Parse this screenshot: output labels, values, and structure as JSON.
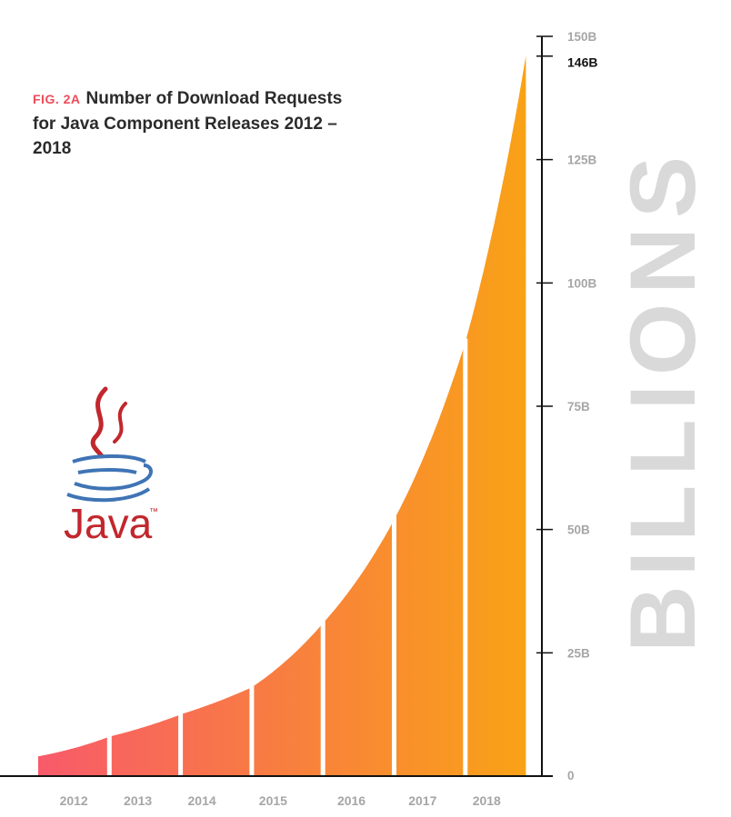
{
  "figure": {
    "label": "FIG. 2A",
    "title": "Number of Download Requests for Java Component Releases 2012 – 2018",
    "big_axis_word": "BILLIONS",
    "logo_text": "Java",
    "logo_tm": "™"
  },
  "colors": {
    "gradient_start": "#f85a6a",
    "gradient_end": "#f9a216",
    "axis": "#111111",
    "tick_label": "#a6a6a6",
    "highlight_label": "#111111",
    "big_word": "#d9d9d9",
    "fig_label": "#ee4b5a",
    "java_red": "#c1272d",
    "java_blue": "#3f74b5"
  },
  "chart_data": {
    "type": "area",
    "title": "Number of Download Requests for Java Component Releases 2012 – 2018",
    "xlabel": "",
    "ylabel": "BILLIONS",
    "x_categories": [
      "2012",
      "2013",
      "2014",
      "2015",
      "2016",
      "2017",
      "2018"
    ],
    "y_ticks": [
      {
        "value": 0,
        "label": "0"
      },
      {
        "value": 25,
        "label": "25B"
      },
      {
        "value": 50,
        "label": "50B"
      },
      {
        "value": 75,
        "label": "75B"
      },
      {
        "value": 100,
        "label": "100B"
      },
      {
        "value": 125,
        "label": "125B"
      },
      {
        "value": 150,
        "label": "150B"
      }
    ],
    "highlight": {
      "value": 146,
      "label": "146B"
    },
    "ylim": [
      0,
      150
    ],
    "series": [
      {
        "points": [
          {
            "year": 2012.0,
            "value": 4
          },
          {
            "year": 2013.0,
            "value": 8
          },
          {
            "year": 2014.0,
            "value": 12.5
          },
          {
            "year": 2015.0,
            "value": 18
          },
          {
            "year": 2016.0,
            "value": 31
          },
          {
            "year": 2017.0,
            "value": 52
          },
          {
            "year": 2018.0,
            "value": 88
          },
          {
            "year": 2018.85,
            "value": 146
          }
        ]
      }
    ],
    "grid": false
  }
}
